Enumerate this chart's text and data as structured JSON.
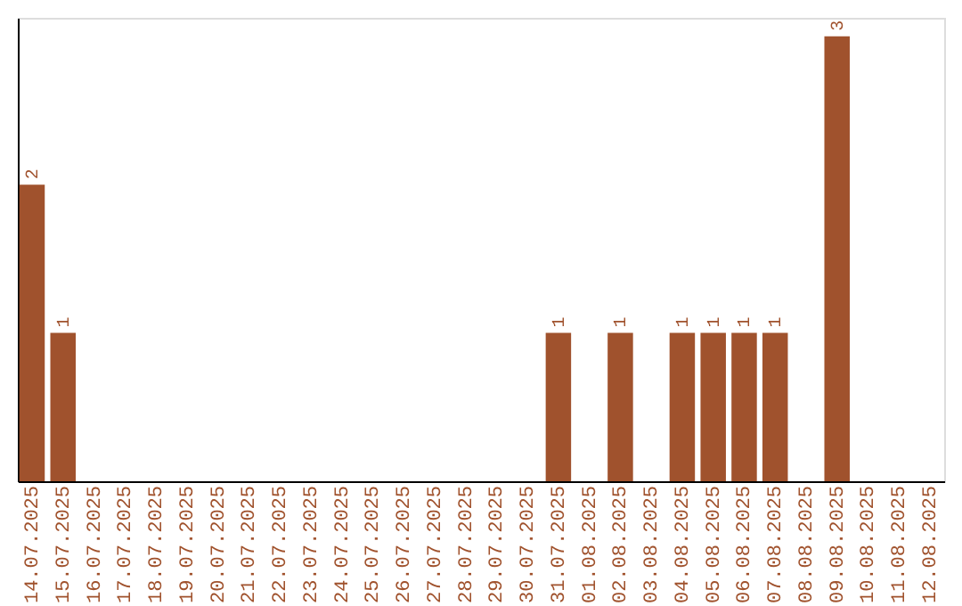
{
  "chart_data": {
    "type": "bar",
    "categories": [
      "14.07.2025",
      "15.07.2025",
      "16.07.2025",
      "17.07.2025",
      "18.07.2025",
      "19.07.2025",
      "20.07.2025",
      "21.07.2025",
      "22.07.2025",
      "23.07.2025",
      "24.07.2025",
      "25.07.2025",
      "26.07.2025",
      "27.07.2025",
      "28.07.2025",
      "29.07.2025",
      "30.07.2025",
      "31.07.2025",
      "01.08.2025",
      "02.08.2025",
      "03.08.2025",
      "04.08.2025",
      "05.08.2025",
      "06.08.2025",
      "07.08.2025",
      "08.08.2025",
      "09.08.2025",
      "10.08.2025",
      "11.08.2025",
      "12.08.2025"
    ],
    "values": [
      2,
      1,
      0,
      0,
      0,
      0,
      0,
      0,
      0,
      0,
      0,
      0,
      0,
      0,
      0,
      0,
      0,
      1,
      0,
      1,
      0,
      1,
      1,
      1,
      1,
      0,
      3,
      0,
      0,
      0
    ],
    "value_labels": [
      "2",
      "1",
      null,
      null,
      null,
      null,
      null,
      null,
      null,
      null,
      null,
      null,
      null,
      null,
      null,
      null,
      null,
      "1",
      null,
      "1",
      null,
      "1",
      "1",
      "1",
      "1",
      null,
      "3",
      null,
      null,
      null
    ],
    "color": "#a0522d",
    "tick_labels": "x",
    "grid": false
  }
}
